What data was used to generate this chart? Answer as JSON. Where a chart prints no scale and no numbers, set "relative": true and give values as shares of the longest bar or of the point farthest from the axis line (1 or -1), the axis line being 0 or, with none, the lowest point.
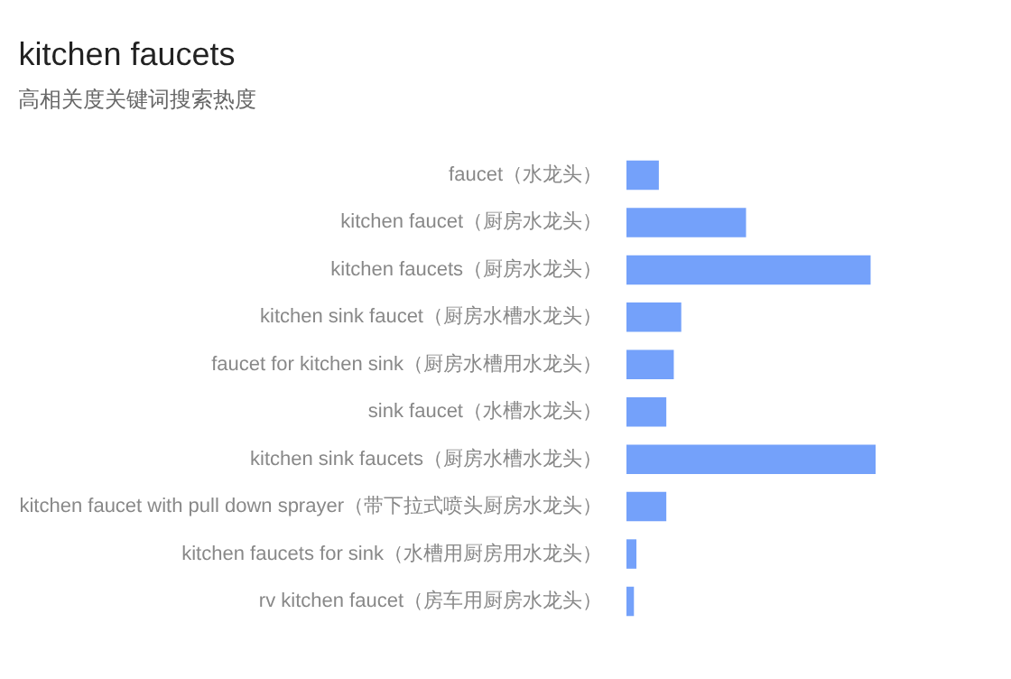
{
  "chart_data": {
    "type": "bar",
    "orientation": "horizontal",
    "relative": true,
    "title": "kitchen faucets",
    "subtitle": "高相关度关键词搜索热度",
    "categories": [
      "faucet（水龙头）",
      "kitchen faucet（厨房水龙头）",
      "kitchen faucets（厨房水龙头）",
      "kitchen sink faucet（厨房水槽水龙头）",
      "faucet for kitchen sink（厨房水槽用水龙头）",
      "sink faucet（水槽水龙头）",
      "kitchen sink faucets（厨房水槽水龙头）",
      "kitchen faucet with pull down sprayer（带下拉式喷头厨房水龙头）",
      "kitchen faucets for sink（水槽用厨房用水龙头）",
      "rv kitchen faucet（房车用厨房水龙头）"
    ],
    "values": [
      0.13,
      0.48,
      0.98,
      0.22,
      0.19,
      0.16,
      1,
      0.16,
      0.04,
      0.03
    ],
    "color": "#74a1fa"
  }
}
